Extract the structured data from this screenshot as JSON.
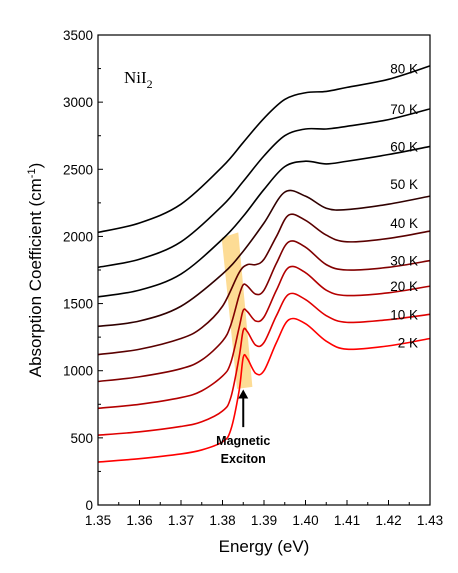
{
  "chart_data": {
    "type": "line",
    "compound_label": {
      "base": "NiI",
      "subscript": "2"
    },
    "xlabel": "Energy (eV)",
    "ylabel": {
      "main": "Absorption Coefficient (cm",
      "superscript": "-1",
      "close": ")"
    },
    "xlim": [
      1.35,
      1.43
    ],
    "ylim": [
      0,
      3500
    ],
    "xticks": [
      "1.35",
      "1.36",
      "1.37",
      "1.38",
      "1.39",
      "1.40",
      "1.41",
      "1.42",
      "1.43"
    ],
    "yticks": [
      "0",
      "500",
      "1000",
      "1500",
      "2000",
      "2500",
      "3000",
      "3500"
    ],
    "annotation": {
      "line1": "Magnetic",
      "line2": "Exciton",
      "arrow_x": 1.385,
      "arrow_from_y": 580,
      "arrow_to_y": 860
    },
    "highlight": {
      "color": "#fdd88a",
      "points": [
        [
          1.3798,
          1990
        ],
        [
          1.3838,
          2030
        ],
        [
          1.3872,
          880
        ],
        [
          1.3835,
          865
        ]
      ]
    },
    "series": [
      {
        "name": "2 K",
        "color": "#ff0000",
        "label_y": 1210,
        "x": [
          1.35,
          1.36,
          1.37,
          1.375,
          1.38,
          1.382,
          1.384,
          1.385,
          1.386,
          1.388,
          1.39,
          1.393,
          1.396,
          1.4,
          1.405,
          1.41,
          1.42,
          1.43
        ],
        "y": [
          320,
          345,
          380,
          410,
          470,
          560,
          850,
          1100,
          1090,
          980,
          1000,
          1210,
          1380,
          1350,
          1220,
          1160,
          1185,
          1240
        ]
      },
      {
        "name": "10 K",
        "color": "#e00000",
        "label_y": 1420,
        "x": [
          1.35,
          1.36,
          1.37,
          1.375,
          1.38,
          1.382,
          1.384,
          1.385,
          1.386,
          1.388,
          1.39,
          1.393,
          1.396,
          1.4,
          1.405,
          1.41,
          1.42,
          1.43
        ],
        "y": [
          520,
          545,
          585,
          620,
          700,
          800,
          1100,
          1300,
          1290,
          1190,
          1210,
          1410,
          1570,
          1530,
          1410,
          1360,
          1380,
          1420
        ]
      },
      {
        "name": "20 K",
        "color": "#b30000",
        "label_y": 1630,
        "x": [
          1.35,
          1.36,
          1.37,
          1.375,
          1.38,
          1.382,
          1.384,
          1.385,
          1.386,
          1.388,
          1.39,
          1.393,
          1.396,
          1.4,
          1.405,
          1.41,
          1.42,
          1.43
        ],
        "y": [
          720,
          750,
          800,
          850,
          960,
          1060,
          1320,
          1450,
          1440,
          1370,
          1400,
          1600,
          1770,
          1730,
          1600,
          1560,
          1580,
          1630
        ]
      },
      {
        "name": "30 K",
        "color": "#800000",
        "label_y": 1820,
        "x": [
          1.35,
          1.36,
          1.37,
          1.375,
          1.38,
          1.382,
          1.384,
          1.385,
          1.386,
          1.388,
          1.39,
          1.393,
          1.396,
          1.4,
          1.405,
          1.41,
          1.42,
          1.43
        ],
        "y": [
          920,
          955,
          1015,
          1080,
          1220,
          1340,
          1560,
          1640,
          1630,
          1570,
          1600,
          1800,
          1960,
          1920,
          1790,
          1750,
          1770,
          1820
        ]
      },
      {
        "name": "40 K",
        "color": "#5a0000",
        "label_y": 2100,
        "x": [
          1.35,
          1.36,
          1.37,
          1.375,
          1.38,
          1.384,
          1.386,
          1.388,
          1.39,
          1.393,
          1.396,
          1.4,
          1.405,
          1.41,
          1.42,
          1.43
        ],
        "y": [
          1120,
          1160,
          1240,
          1320,
          1480,
          1730,
          1790,
          1790,
          1830,
          2000,
          2160,
          2120,
          2010,
          1960,
          1985,
          2040
        ]
      },
      {
        "name": "50 K",
        "color": "#300000",
        "label_y": 2390,
        "x": [
          1.35,
          1.36,
          1.37,
          1.38,
          1.385,
          1.39,
          1.395,
          1.4,
          1.405,
          1.41,
          1.42,
          1.43
        ],
        "y": [
          1330,
          1370,
          1480,
          1720,
          1890,
          2100,
          2330,
          2300,
          2210,
          2200,
          2240,
          2300
        ]
      },
      {
        "name": "60 K",
        "color": "#000000",
        "label_y": 2670,
        "x": [
          1.35,
          1.36,
          1.37,
          1.38,
          1.385,
          1.39,
          1.395,
          1.4,
          1.405,
          1.41,
          1.42,
          1.43
        ],
        "y": [
          1550,
          1600,
          1720,
          1980,
          2150,
          2350,
          2520,
          2560,
          2540,
          2560,
          2610,
          2670
        ]
      },
      {
        "name": "70 K",
        "color": "#000000",
        "label_y": 2950,
        "x": [
          1.35,
          1.36,
          1.37,
          1.38,
          1.385,
          1.39,
          1.395,
          1.4,
          1.405,
          1.41,
          1.42,
          1.43
        ],
        "y": [
          1770,
          1830,
          1960,
          2230,
          2410,
          2600,
          2750,
          2800,
          2800,
          2820,
          2870,
          2950
        ]
      },
      {
        "name": "80 K",
        "color": "#000000",
        "label_y": 3250,
        "x": [
          1.35,
          1.36,
          1.37,
          1.38,
          1.385,
          1.39,
          1.395,
          1.4,
          1.405,
          1.41,
          1.42,
          1.43
        ],
        "y": [
          2030,
          2100,
          2240,
          2520,
          2700,
          2880,
          3020,
          3070,
          3080,
          3110,
          3170,
          3270
        ]
      }
    ]
  }
}
